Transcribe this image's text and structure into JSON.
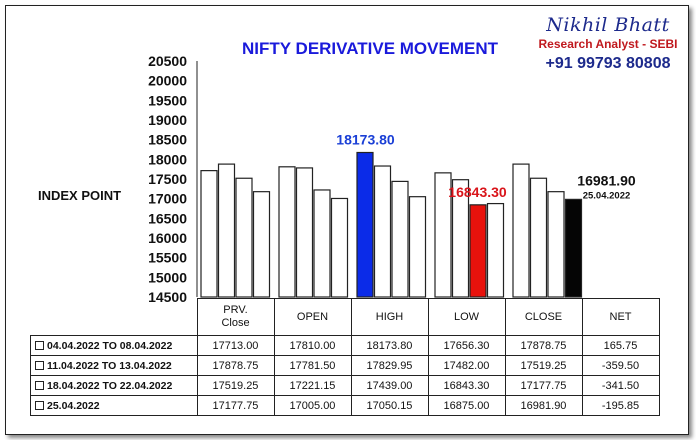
{
  "brand": {
    "name": "Nikhil Bhatt",
    "role": "Research Analyst - SEBI",
    "phone": "+91 99793 80808"
  },
  "chart_data": {
    "type": "bar",
    "title": "NIFTY DERIVATIVE MOVEMENT",
    "ylabel": "INDEX POINT",
    "ylim": [
      14500,
      20500
    ],
    "yticks": [
      "14500",
      "15000",
      "15500",
      "16000",
      "16500",
      "17000",
      "17500",
      "18000",
      "18500",
      "19000",
      "19500",
      "20000",
      "20500"
    ],
    "categories": [
      "PRV.\nClose",
      "OPEN",
      "HIGH",
      "LOW",
      "CLOSE"
    ],
    "series": [
      {
        "name": "04.04.2022 TO 08.04.2022",
        "values": [
          17713.0,
          17810.0,
          18173.8,
          17656.3,
          17878.75
        ]
      },
      {
        "name": "11.04.2022 TO 13.04.2022",
        "values": [
          17878.75,
          17781.5,
          17829.95,
          17482.0,
          17519.25
        ]
      },
      {
        "name": "18.04.2022 TO 22.04.2022",
        "values": [
          17519.25,
          17221.15,
          17439.0,
          16843.3,
          17177.75
        ]
      },
      {
        "name": "25.04.2022",
        "values": [
          17177.75,
          17005.0,
          17050.15,
          16875.0,
          16981.9
        ]
      }
    ],
    "highlights": [
      {
        "category_index": 2,
        "series_index": 0,
        "color": "#0b2be8",
        "label": "18173.80",
        "label_color": "#1a3fd6"
      },
      {
        "category_index": 3,
        "series_index": 2,
        "color": "#e8120c",
        "label": "16843.30",
        "label_color": "#d9141a"
      },
      {
        "category_index": 4,
        "series_index": 3,
        "color": "#050505",
        "label": "16981.90",
        "label_color": "#111111",
        "sublabel": "25.04.2022"
      }
    ],
    "grid": false
  },
  "table": {
    "headers": [
      "PRV.\nClose",
      "OPEN",
      "HIGH",
      "LOW",
      "CLOSE",
      "NET"
    ],
    "rows": [
      {
        "label": "04.04.2022 TO 08.04.2022",
        "cells": [
          "17713.00",
          "17810.00",
          "18173.80",
          "17656.30",
          "17878.75",
          "165.75"
        ]
      },
      {
        "label": "11.04.2022 TO 13.04.2022",
        "cells": [
          "17878.75",
          "17781.50",
          "17829.95",
          "17482.00",
          "17519.25",
          "-359.50"
        ]
      },
      {
        "label": "18.04.2022 TO 22.04.2022",
        "cells": [
          "17519.25",
          "17221.15",
          "17439.00",
          "16843.30",
          "17177.75",
          "-341.50"
        ]
      },
      {
        "label": "25.04.2022",
        "cells": [
          "17177.75",
          "17005.00",
          "17050.15",
          "16875.00",
          "16981.90",
          "-195.85"
        ]
      }
    ]
  }
}
